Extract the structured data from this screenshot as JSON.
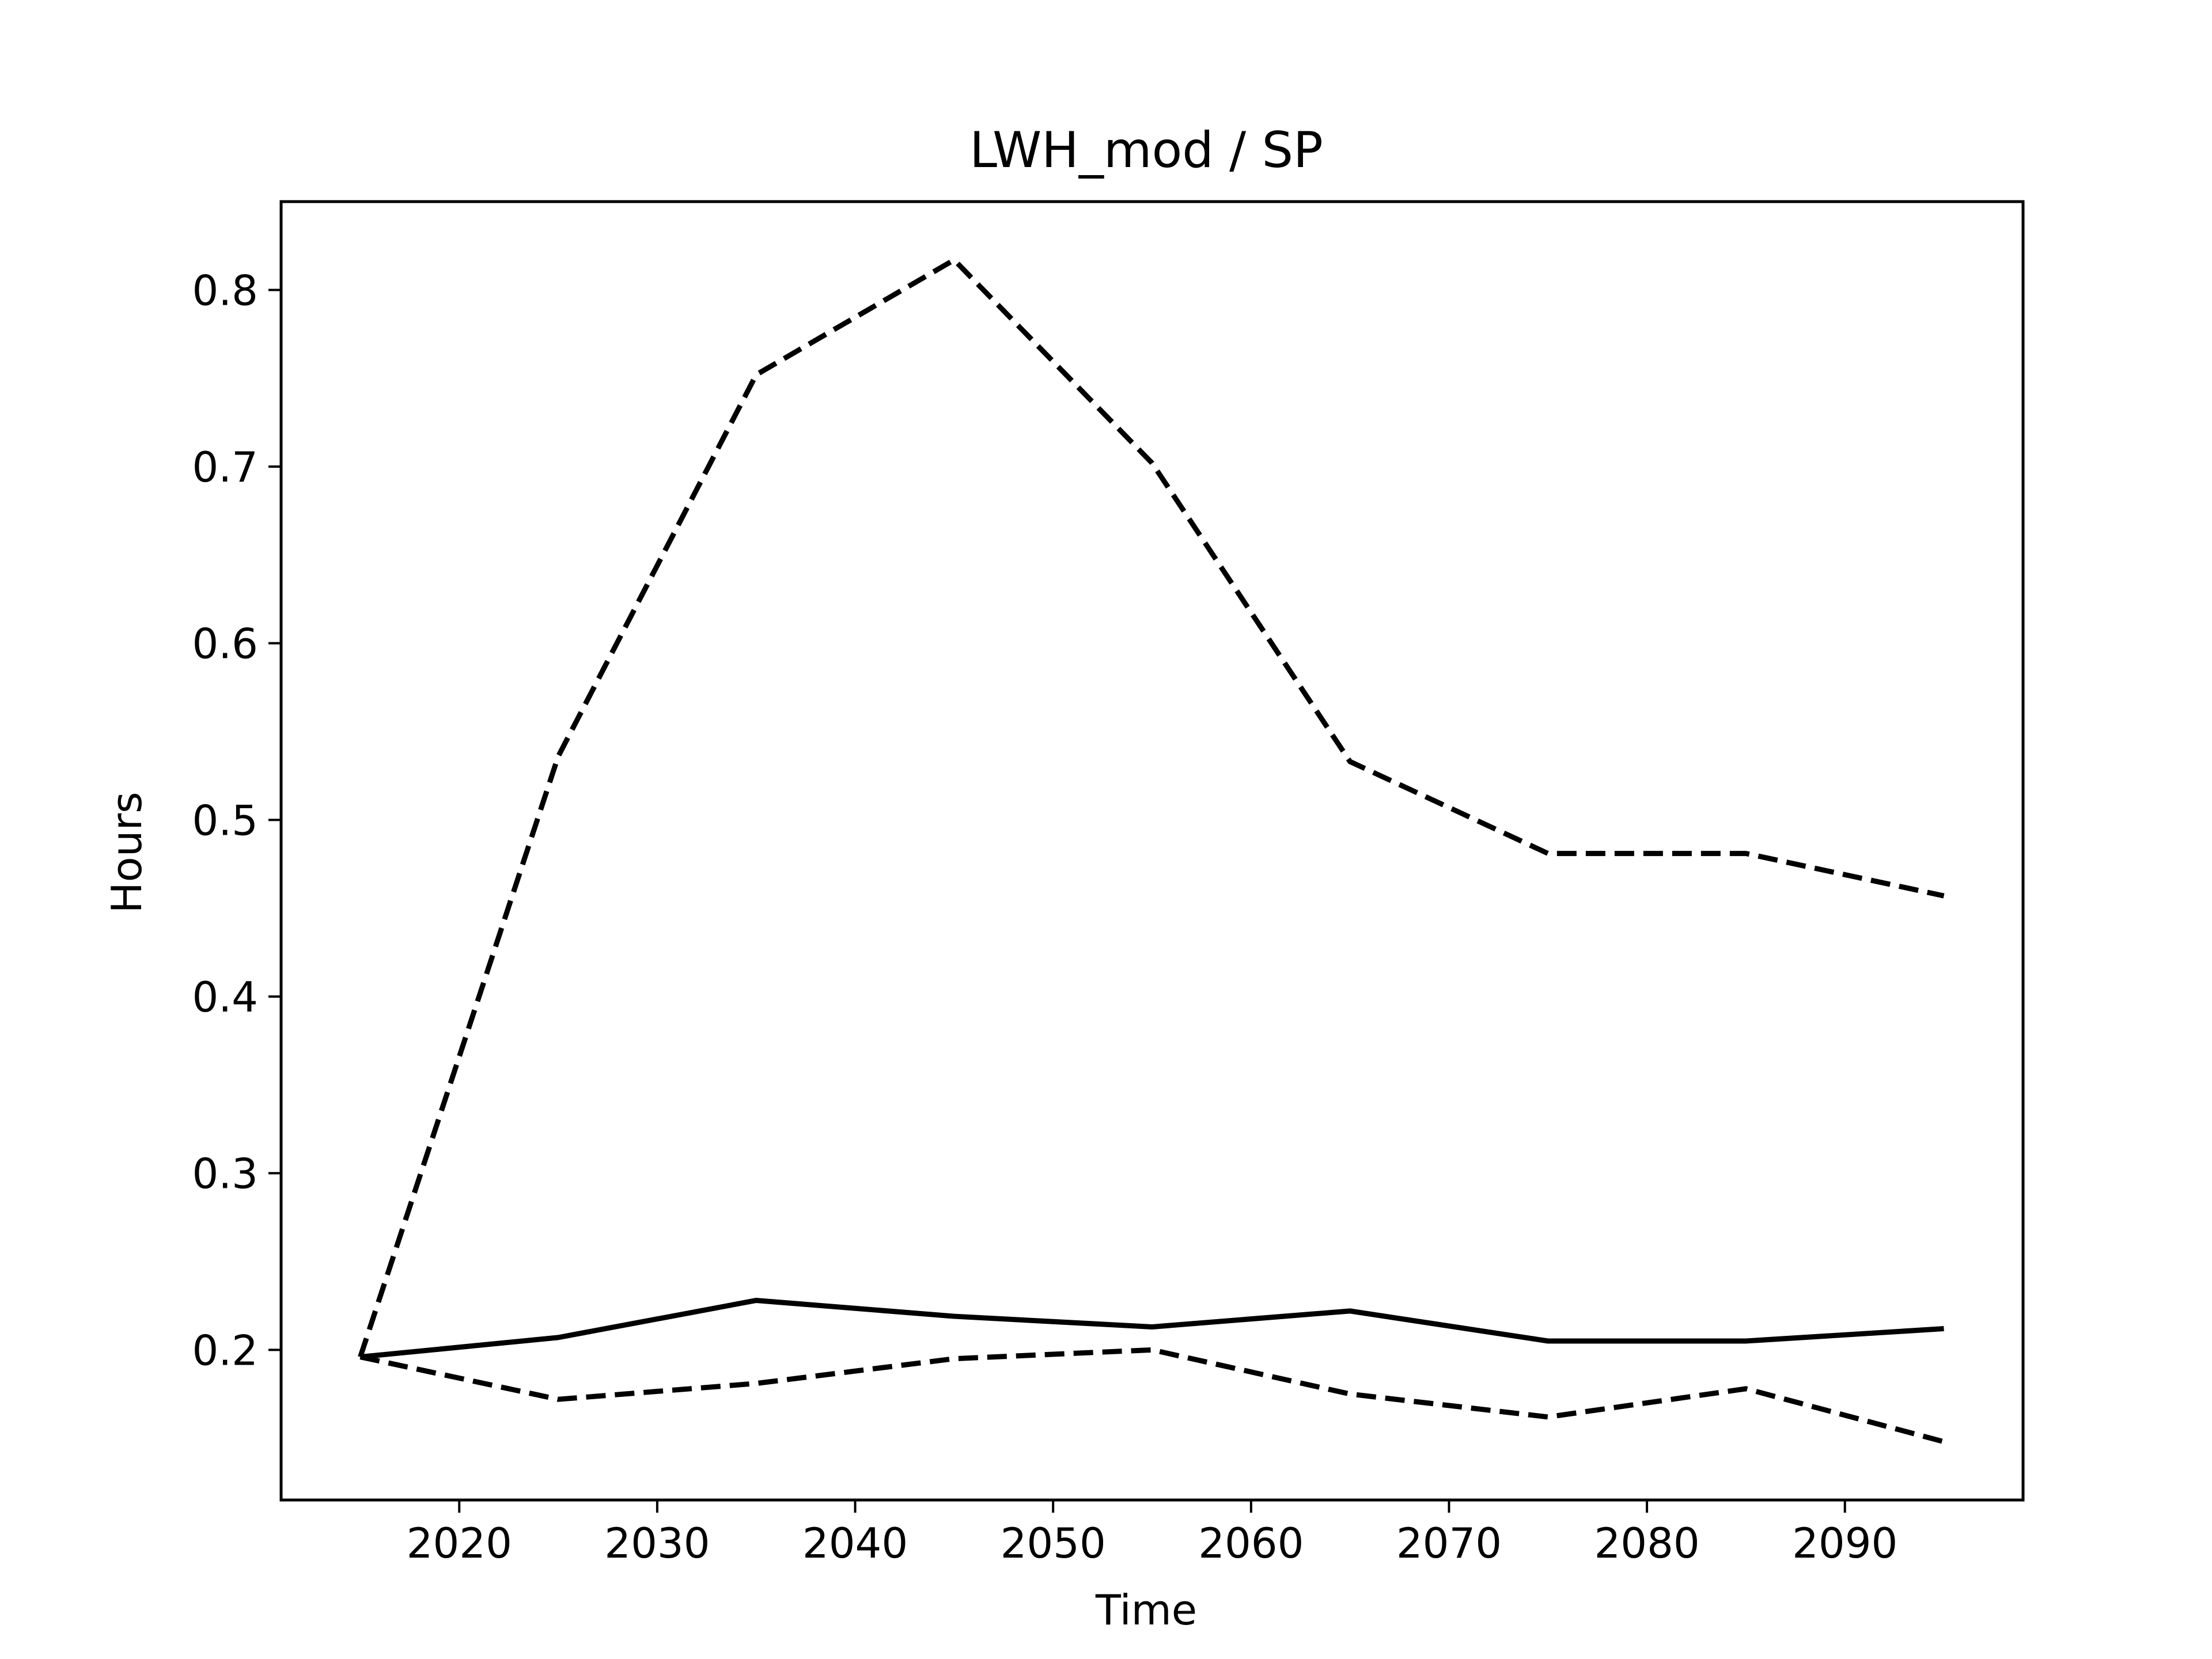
{
  "chart_data": {
    "type": "line",
    "title": "LWH_mod / SP",
    "xlabel": "Time",
    "ylabel": "Hours",
    "xlim": [
      2011,
      2099
    ],
    "ylim": [
      0.115,
      0.85
    ],
    "x_ticks": [
      2020,
      2030,
      2040,
      2050,
      2060,
      2070,
      2080,
      2090
    ],
    "y_ticks": [
      0.2,
      0.3,
      0.4,
      0.5,
      0.6,
      0.7,
      0.8
    ],
    "x_tick_labels": [
      "2020",
      "2030",
      "2040",
      "2050",
      "2060",
      "2070",
      "2080",
      "2090"
    ],
    "y_tick_labels": [
      "0.2",
      "0.3",
      "0.4",
      "0.5",
      "0.6",
      "0.7",
      "0.8"
    ],
    "grid": false,
    "x": [
      2015,
      2025,
      2035,
      2045,
      2055,
      2065,
      2075,
      2085,
      2095
    ],
    "series": [
      {
        "style": "solid",
        "color": "#000000",
        "values": [
          0.196,
          0.207,
          0.228,
          0.219,
          0.213,
          0.222,
          0.205,
          0.205,
          0.212
        ]
      },
      {
        "style": "dashed",
        "color": "#000000",
        "values": [
          0.196,
          0.536,
          0.752,
          0.817,
          0.702,
          0.533,
          0.481,
          0.481,
          0.457
        ]
      },
      {
        "style": "dashed",
        "color": "#000000",
        "values": [
          0.196,
          0.172,
          0.181,
          0.195,
          0.2,
          0.175,
          0.162,
          0.178,
          0.148
        ]
      }
    ]
  }
}
